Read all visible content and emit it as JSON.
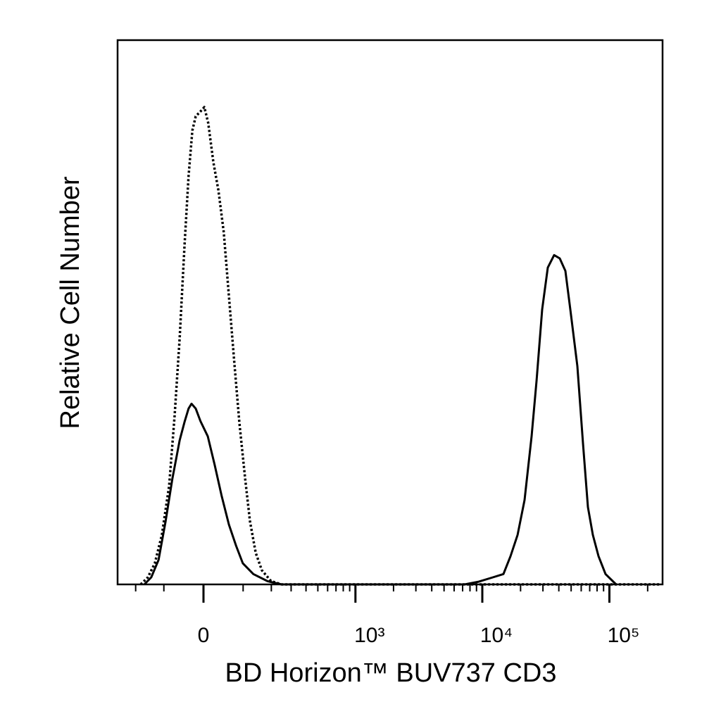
{
  "chart_data": {
    "type": "line",
    "xlabel": "BD Horizon™ BUV737  CD3",
    "ylabel": "Relative Cell Number",
    "xscale": "biexponential",
    "xlim": [
      -290,
      262000
    ],
    "ylim": [
      0,
      100
    ],
    "xticks": [
      0,
      {
        "value": 1000,
        "label": "10³"
      },
      {
        "value": 10000,
        "label": "10⁴"
      },
      {
        "value": 100000,
        "label": "10⁵"
      }
    ],
    "xminorticks": [
      -200,
      -100,
      100,
      200,
      300,
      400,
      500,
      600,
      700,
      800,
      900,
      2000,
      3000,
      4000,
      5000,
      6000,
      7000,
      8000,
      9000,
      20000,
      30000,
      40000,
      50000,
      60000,
      70000,
      80000,
      90000,
      200000
    ],
    "series": [
      {
        "style": "solid",
        "color": "#000000",
        "x": [
          -165,
          -140,
          -116,
          -95,
          -76,
          -57,
          -45,
          -35,
          -28,
          -18,
          -7,
          10,
          26,
          43,
          61,
          80,
          99,
          132,
          184,
          248,
          7270,
          9380,
          12100,
          14670,
          16670,
          18940,
          21510,
          24440,
          26730,
          29580,
          32760,
          36750,
          40690,
          45050,
          49270,
          55970,
          61990,
          67780,
          74110,
          82050,
          93220,
          112900
        ],
        "values": [
          0,
          1.3,
          4.5,
          11.6,
          19.4,
          26.5,
          29.8,
          32.3,
          33.2,
          32.3,
          30.0,
          27.2,
          22.0,
          16.2,
          11.0,
          7.1,
          3.9,
          1.9,
          0.6,
          0,
          0,
          0.5,
          1.3,
          1.9,
          5.2,
          9.1,
          15.5,
          27.2,
          37.5,
          50.5,
          58.2,
          60.5,
          59.9,
          57.6,
          50.5,
          40.1,
          25.9,
          14.2,
          9.1,
          5.2,
          1.9,
          0
        ]
      },
      {
        "style": "dotted",
        "color": "#000000",
        "x": [
          -179,
          -152,
          -128,
          -106,
          -85,
          -70,
          -57,
          -45,
          -35,
          -26,
          -18,
          -7,
          2,
          11,
          23,
          35,
          48,
          61,
          76,
          89,
          106,
          121,
          140,
          162,
          199,
          248,
          250000
        ],
        "values": [
          0,
          1.3,
          3.9,
          9.1,
          18.1,
          31.0,
          45.3,
          62.1,
          75.0,
          83.4,
          86.0,
          86.9,
          87.7,
          84.8,
          77.6,
          72.4,
          64.7,
          53.0,
          40.1,
          29.8,
          19.4,
          11.6,
          5.8,
          2.6,
          0.6,
          0,
          0
        ]
      }
    ]
  }
}
